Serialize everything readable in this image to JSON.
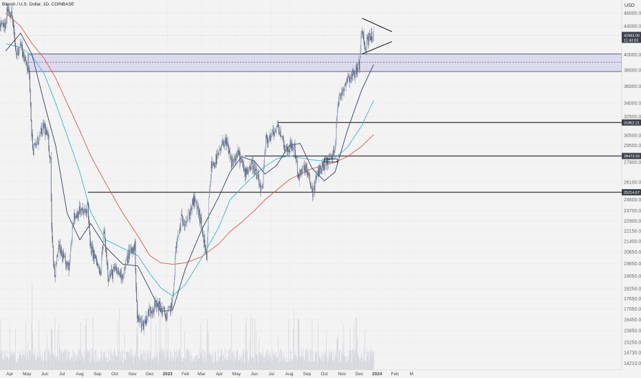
{
  "chart_data": {
    "type": "candlestick",
    "title": "Bitcoin / U.S. Dollar, 1D, COINBASE",
    "currency": "USD",
    "ylim": [
      14000,
      47500
    ],
    "y_scale": "log",
    "y_ticks": [
      46000,
      44000,
      42000,
      40000,
      38000,
      36000,
      34000,
      32500,
      30500,
      29500,
      27900,
      26100,
      24600,
      23700,
      22900,
      22150,
      21400,
      20650,
      19850,
      19050,
      18250,
      17650,
      17050,
      16450,
      15850,
      15250,
      14730,
      14210
    ],
    "x_ticks": [
      "Apr",
      "May",
      "Jun",
      "Jul",
      "Aug",
      "Sep",
      "Oct",
      "Nov",
      "Dec",
      "2023",
      "Feb",
      "Mar",
      "Apr",
      "May",
      "Jun",
      "Jul",
      "Aug",
      "Sep",
      "Oct",
      "Nov",
      "Dec",
      "2024",
      "Feb",
      "M"
    ],
    "last_price": "42683.00",
    "countdown": "11:43:03",
    "price_labels": [
      "31862.21",
      "28473.93",
      "25214.67"
    ],
    "price_path": [
      [
        "2022-03-25",
        44000
      ],
      [
        "2022-03-28",
        47000
      ],
      [
        "2022-04-05",
        45500
      ],
      [
        "2022-04-12",
        40000
      ],
      [
        "2022-04-20",
        41500
      ],
      [
        "2022-04-28",
        39000
      ],
      [
        "2022-05-03",
        38500
      ],
      [
        "2022-05-06",
        36000
      ],
      [
        "2022-05-09",
        31000
      ],
      [
        "2022-05-12",
        29000
      ],
      [
        "2022-05-20",
        30000
      ],
      [
        "2022-05-31",
        31500
      ],
      [
        "2022-06-07",
        30000
      ],
      [
        "2022-06-11",
        28000
      ],
      [
        "2022-06-13",
        22500
      ],
      [
        "2022-06-18",
        19000
      ],
      [
        "2022-06-25",
        21000
      ],
      [
        "2022-07-05",
        20000
      ],
      [
        "2022-07-13",
        19500
      ],
      [
        "2022-07-20",
        23000
      ],
      [
        "2022-07-30",
        23700
      ],
      [
        "2022-08-10",
        23500
      ],
      [
        "2022-08-15",
        24200
      ],
      [
        "2022-08-19",
        21000
      ],
      [
        "2022-08-30",
        20000
      ],
      [
        "2022-09-06",
        19000
      ],
      [
        "2022-09-12",
        22300
      ],
      [
        "2022-09-20",
        19000
      ],
      [
        "2022-10-01",
        19400
      ],
      [
        "2022-10-15",
        19100
      ],
      [
        "2022-10-25",
        20500
      ],
      [
        "2022-11-05",
        21000
      ],
      [
        "2022-11-09",
        16500
      ],
      [
        "2022-11-20",
        16200
      ],
      [
        "2022-12-01",
        17000
      ],
      [
        "2022-12-15",
        17300
      ],
      [
        "2022-12-31",
        16600
      ],
      [
        "2023-01-10",
        17500
      ],
      [
        "2023-01-15",
        20800
      ],
      [
        "2023-01-25",
        23000
      ],
      [
        "2023-02-05",
        23000
      ],
      [
        "2023-02-15",
        24500
      ],
      [
        "2023-02-22",
        24000
      ],
      [
        "2023-03-02",
        22300
      ],
      [
        "2023-03-10",
        20000
      ],
      [
        "2023-03-14",
        24500
      ],
      [
        "2023-03-18",
        27500
      ],
      [
        "2023-03-30",
        28400
      ],
      [
        "2023-04-11",
        30200
      ],
      [
        "2023-04-22",
        27800
      ],
      [
        "2023-05-05",
        28700
      ],
      [
        "2023-05-15",
        27000
      ],
      [
        "2023-05-30",
        27700
      ],
      [
        "2023-06-10",
        25800
      ],
      [
        "2023-06-15",
        25200
      ],
      [
        "2023-06-21",
        30000
      ],
      [
        "2023-07-01",
        30500
      ],
      [
        "2023-07-13",
        31400
      ],
      [
        "2023-07-25",
        29200
      ],
      [
        "2023-08-10",
        29400
      ],
      [
        "2023-08-17",
        26500
      ],
      [
        "2023-08-29",
        27500
      ],
      [
        "2023-09-11",
        25200
      ],
      [
        "2023-09-20",
        27000
      ],
      [
        "2023-10-02",
        27800
      ],
      [
        "2023-10-16",
        28500
      ],
      [
        "2023-10-20",
        29700
      ],
      [
        "2023-10-24",
        33900
      ],
      [
        "2023-11-10",
        37000
      ],
      [
        "2023-11-22",
        37500
      ],
      [
        "2023-12-01",
        38700
      ],
      [
        "2023-12-04",
        41900
      ],
      [
        "2023-12-06",
        44000
      ],
      [
        "2023-12-11",
        41200
      ],
      [
        "2023-12-19",
        42500
      ],
      [
        "2023-12-26",
        42700
      ]
    ],
    "sma_50": [
      [
        "2022-03-25",
        40500
      ],
      [
        "2022-04-20",
        43000
      ],
      [
        "2022-05-10",
        40000
      ],
      [
        "2022-05-31",
        34000
      ],
      [
        "2022-06-20",
        29500
      ],
      [
        "2022-07-10",
        23500
      ],
      [
        "2022-08-01",
        21500
      ],
      [
        "2022-08-20",
        22700
      ],
      [
        "2022-09-15",
        21000
      ],
      [
        "2022-10-15",
        19800
      ],
      [
        "2022-11-10",
        19700
      ],
      [
        "2022-12-01",
        18200
      ],
      [
        "2022-12-20",
        16900
      ],
      [
        "2023-01-10",
        17000
      ],
      [
        "2023-02-01",
        19500
      ],
      [
        "2023-03-01",
        22200
      ],
      [
        "2023-03-31",
        24800
      ],
      [
        "2023-04-20",
        27000
      ],
      [
        "2023-05-10",
        28400
      ],
      [
        "2023-06-01",
        28000
      ],
      [
        "2023-06-20",
        26800
      ],
      [
        "2023-07-10",
        27600
      ],
      [
        "2023-08-01",
        29500
      ],
      [
        "2023-08-20",
        29700
      ],
      [
        "2023-09-10",
        27300
      ],
      [
        "2023-10-01",
        26200
      ],
      [
        "2023-10-20",
        27000
      ],
      [
        "2023-11-10",
        31000
      ],
      [
        "2023-12-05",
        35500
      ],
      [
        "2023-12-26",
        38700
      ]
    ],
    "sma_100": [
      [
        "2022-03-25",
        41500
      ],
      [
        "2022-04-20",
        41000
      ],
      [
        "2022-05-10",
        39800
      ],
      [
        "2022-05-31",
        37500
      ],
      [
        "2022-06-20",
        34000
      ],
      [
        "2022-07-10",
        30500
      ],
      [
        "2022-08-01",
        27000
      ],
      [
        "2022-08-20",
        23600
      ],
      [
        "2022-09-15",
        21500
      ],
      [
        "2022-10-15",
        20900
      ],
      [
        "2022-11-10",
        20400
      ],
      [
        "2022-12-01",
        19200
      ],
      [
        "2022-12-20",
        18300
      ],
      [
        "2023-01-10",
        17800
      ],
      [
        "2023-02-01",
        18500
      ],
      [
        "2023-03-01",
        20200
      ],
      [
        "2023-03-31",
        22400
      ],
      [
        "2023-04-20",
        24600
      ],
      [
        "2023-05-10",
        25600
      ],
      [
        "2023-06-01",
        26700
      ],
      [
        "2023-06-20",
        27500
      ],
      [
        "2023-07-10",
        28200
      ],
      [
        "2023-08-01",
        28500
      ],
      [
        "2023-08-20",
        28300
      ],
      [
        "2023-09-10",
        28100
      ],
      [
        "2023-10-01",
        28000
      ],
      [
        "2023-10-20",
        28300
      ],
      [
        "2023-11-10",
        29300
      ],
      [
        "2023-12-05",
        31500
      ],
      [
        "2023-12-26",
        34300
      ]
    ],
    "sma_200": [
      [
        "2022-03-25",
        46000
      ],
      [
        "2022-04-20",
        44000
      ],
      [
        "2022-05-10",
        41500
      ],
      [
        "2022-05-31",
        39500
      ],
      [
        "2022-06-20",
        37000
      ],
      [
        "2022-07-10",
        34000
      ],
      [
        "2022-08-01",
        31000
      ],
      [
        "2022-08-20",
        28500
      ],
      [
        "2022-09-15",
        26000
      ],
      [
        "2022-10-15",
        23500
      ],
      [
        "2022-11-10",
        21800
      ],
      [
        "2022-12-01",
        20400
      ],
      [
        "2022-12-20",
        19900
      ],
      [
        "2023-01-10",
        19800
      ],
      [
        "2023-02-01",
        19900
      ],
      [
        "2023-03-01",
        20300
      ],
      [
        "2023-03-31",
        21200
      ],
      [
        "2023-04-20",
        22100
      ],
      [
        "2023-05-10",
        22800
      ],
      [
        "2023-06-01",
        23700
      ],
      [
        "2023-06-20",
        24600
      ],
      [
        "2023-07-10",
        25400
      ],
      [
        "2023-08-01",
        26300
      ],
      [
        "2023-08-20",
        26800
      ],
      [
        "2023-09-10",
        27300
      ],
      [
        "2023-10-01",
        27600
      ],
      [
        "2023-10-20",
        27900
      ],
      [
        "2023-11-10",
        28400
      ],
      [
        "2023-12-05",
        29400
      ],
      [
        "2023-12-26",
        30600
      ]
    ],
    "horizontal_levels": [
      {
        "price": 31862.21,
        "start": "2023-07-13",
        "end": "2024-03-08",
        "label": "31862.21"
      },
      {
        "price": 28473.93,
        "start": "2023-05-15",
        "end": "2024-03-08",
        "label": "28473.93"
      },
      {
        "price": 25214.67,
        "start": "2022-08-15",
        "end": "2024-03-08",
        "label": "25214.67"
      }
    ],
    "zone": {
      "top": 40100,
      "bottom": 37800,
      "mid": 39000,
      "start": "2022-05-03",
      "end": "2024-03-08"
    },
    "triangle": {
      "upper": [
        [
          "2023-12-06",
          45200
        ],
        [
          "2024-01-27",
          43200
        ]
      ],
      "lower": [
        [
          "2023-12-06",
          40100
        ],
        [
          "2024-01-27",
          41800
        ]
      ]
    },
    "small_box": {
      "start": "2023-10-01",
      "end": "2023-10-24",
      "top": 28200,
      "bottom": 27900
    },
    "colors": {
      "up": "#7f8fae",
      "down": "#3f4a66",
      "sma_50": "#2c3a6c",
      "sma_100": "#30b4d8",
      "sma_200": "#e0513d",
      "zone_fill": "#c9c7e6",
      "zone_border": "#3b3a86",
      "level_line": "#000000",
      "volume": "#d2d4db",
      "label_bg": "#3b3f4c",
      "background": "#f3f3f3"
    }
  }
}
